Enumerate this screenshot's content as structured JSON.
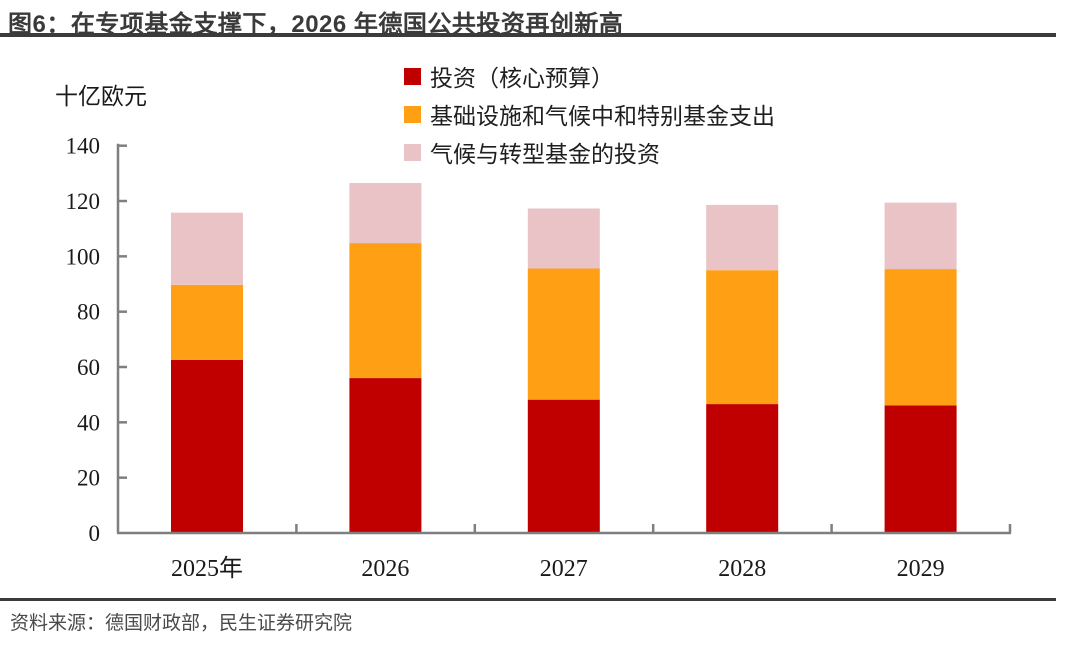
{
  "header": {
    "title": "图6：在专项基金支撑下，2026 年德国公共投资再创新高"
  },
  "footer": {
    "source": "资料来源：德国财政部，民生证券研究院"
  },
  "chart_data": {
    "type": "bar",
    "stacked": true,
    "title": "图6：在专项基金支撑下，2026 年德国公共投资再创新高",
    "unit_label": "十亿欧元",
    "categories": [
      "2025年",
      "2026",
      "2027",
      "2028",
      "2029"
    ],
    "series": [
      {
        "name": "投资（核心预算）",
        "color": "#C00000",
        "values": [
          62.6,
          56.0,
          48.2,
          46.6,
          46.1
        ]
      },
      {
        "name": "基础设施和气候中和特别基金支出",
        "color": "#FFA014",
        "values": [
          27.1,
          48.8,
          47.4,
          48.4,
          49.3
        ]
      },
      {
        "name": "气候与转型基金的投资",
        "color": "#EAC3C6",
        "values": [
          26.1,
          21.7,
          21.7,
          23.6,
          24.0
        ]
      }
    ],
    "totals": [
      115.8,
      126.5,
      117.3,
      118.6,
      119.4
    ],
    "ylim": [
      0,
      140
    ],
    "ytick_step": 20,
    "grid": false,
    "legend_position": "top-center",
    "axis_color": "#7f7f7f",
    "tick_label_color": "#1a1a1a"
  }
}
